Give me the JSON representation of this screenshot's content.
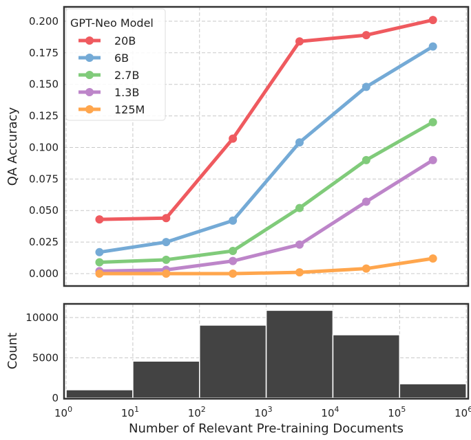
{
  "chart_data": [
    {
      "type": "line",
      "ylabel": "QA Accuracy",
      "xscale": "log",
      "xlim": [
        0.93,
        1070000
      ],
      "ylim": [
        -0.0098,
        0.2114
      ],
      "grid": true,
      "x": [
        3.16,
        31.6,
        316,
        3160,
        31600,
        316000
      ],
      "yticks": [
        0.0,
        0.025,
        0.05,
        0.075,
        0.1,
        0.125,
        0.15,
        0.175,
        0.2
      ],
      "ytick_labels": [
        "0.000",
        "0.025",
        "0.050",
        "0.075",
        "0.100",
        "0.125",
        "0.150",
        "0.175",
        "0.200"
      ],
      "legend": {
        "title": "GPT-Neo Model",
        "placement": "top-left"
      },
      "series": [
        {
          "name": "20B",
          "color": "#ef5a5f",
          "values": [
            0.043,
            0.044,
            0.107,
            0.184,
            0.189,
            0.201
          ]
        },
        {
          "name": "6B",
          "color": "#74aad6",
          "values": [
            0.017,
            0.025,
            0.042,
            0.104,
            0.148,
            0.18
          ]
        },
        {
          "name": "2.7B",
          "color": "#80cb7a",
          "values": [
            0.009,
            0.011,
            0.018,
            0.052,
            0.09,
            0.12
          ]
        },
        {
          "name": "1.3B",
          "color": "#bd85c9",
          "values": [
            0.002,
            0.003,
            0.01,
            0.023,
            0.057,
            0.09
          ]
        },
        {
          "name": "125M",
          "color": "#ffa64d",
          "values": [
            0.0,
            0.0,
            0.0,
            0.001,
            0.004,
            0.012
          ]
        }
      ]
    },
    {
      "type": "bar",
      "ylabel": "Count",
      "xlabel": "Number of Relevant Pre-training Documents",
      "xscale": "log",
      "bin_edges": [
        1,
        10,
        100,
        1000,
        10000,
        100000,
        1000000
      ],
      "values": [
        1030,
        4590,
        9060,
        10900,
        7860,
        1770
      ],
      "color": "#434343",
      "ylim": [
        0,
        11700
      ],
      "grid": true,
      "yticks": [
        0,
        5000,
        10000
      ],
      "ytick_labels": [
        "0",
        "5000",
        "10000"
      ],
      "xtick_bases": [
        "10",
        "10",
        "10",
        "10",
        "10",
        "10",
        "10"
      ],
      "xtick_exponents": [
        "0",
        "1",
        "2",
        "3",
        "4",
        "5",
        "6"
      ]
    }
  ]
}
